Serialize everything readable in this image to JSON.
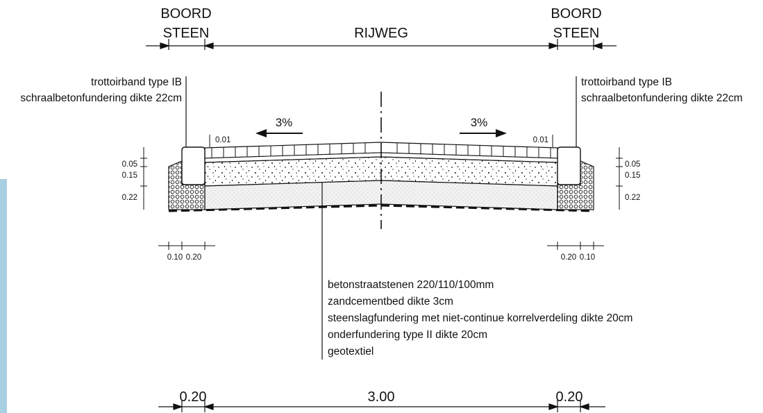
{
  "header": {
    "left_line1": "BOORD",
    "left_line2": "STEEN",
    "center": "RIJWEG",
    "right_line1": "BOORD",
    "right_line2": "STEEN"
  },
  "callouts": {
    "left": [
      "trottoirband type IB",
      "schraalbetonfundering dikte 22cm"
    ],
    "right": [
      "trottoirband type IB",
      "schraalbetonfundering dikte 22cm"
    ]
  },
  "slopes": {
    "left": "3%",
    "right": "3%"
  },
  "small_dims": {
    "top_left": "0.01",
    "top_right": "0.01",
    "layers_left": [
      "0.05",
      "0.15",
      "0.22"
    ],
    "layers_right": [
      "0.05",
      "0.15",
      "0.22"
    ],
    "bottom_left": [
      "0.10",
      "0.20"
    ],
    "bottom_right": [
      "0.20",
      "0.10"
    ]
  },
  "layer_notes": [
    "betonstraatstenen 220/110/100mm",
    "zandcementbed dikte 3cm",
    "steenslagfundering met niet-continue korrelverdeling dikte 20cm",
    "onderfundering type II dikte 20cm",
    "geotextiel"
  ],
  "bottom_dims": {
    "left": "0.20",
    "center": "3.00",
    "right": "0.20"
  },
  "colors": {
    "line": "#111111",
    "accent": "#a9cfe2"
  }
}
